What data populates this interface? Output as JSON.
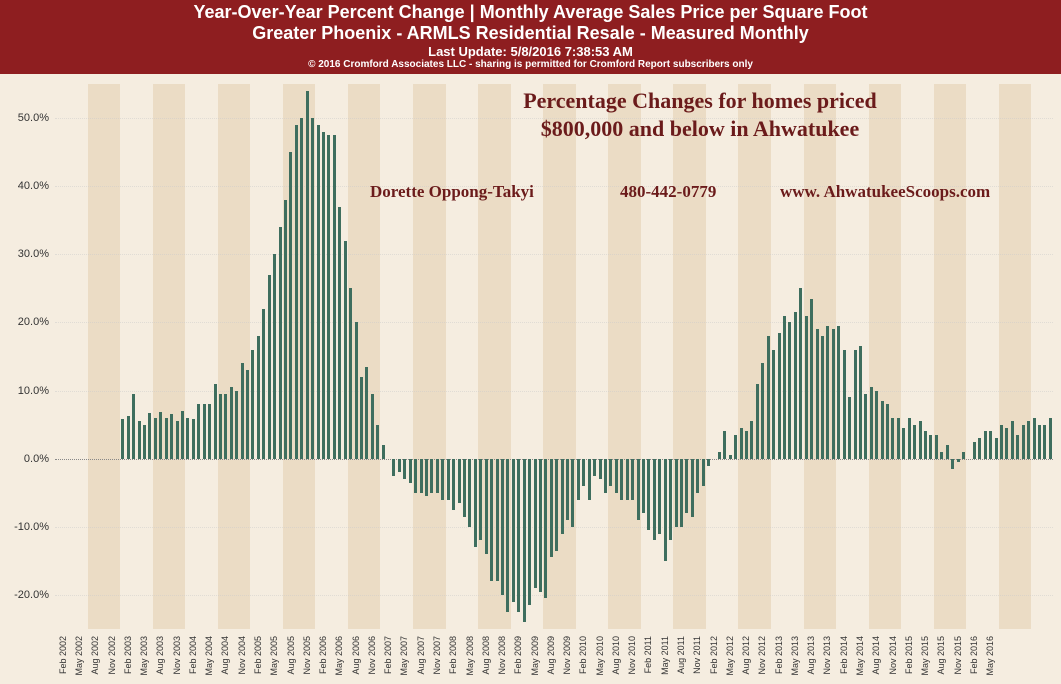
{
  "header": {
    "line1": "Year-Over-Year Percent Change | Monthly Average Sales Price per Square Foot",
    "line2": "Greater Phoenix - ARMLS Residential Resale - Measured Monthly",
    "line3": "Last Update: 5/8/2016 7:38:53 AM",
    "line4": "© 2016 Cromford Associates LLC - sharing is permitted for Cromford Report subscribers only",
    "bg_color": "#8e1e20",
    "text_color": "#ffffff"
  },
  "overlay": {
    "title_line1": "Percentage  Changes for homes priced",
    "title_line2": "$800,000 and below in Ahwatukee",
    "author": "Dorette Oppong-Takyi",
    "phone": "480-442-0779",
    "website": "www. AhwatukeeScoops.com",
    "text_color": "#6b1b1b",
    "font_family": "Georgia, serif"
  },
  "chart": {
    "type": "bar",
    "y_label_suffix": "%",
    "y_ticks": [
      -20.0,
      -10.0,
      0.0,
      10.0,
      20.0,
      30.0,
      40.0,
      50.0
    ],
    "y_min": -25.0,
    "y_max": 55.0,
    "bar_color": "#3e6e5e",
    "bg_color": "#f5ede0",
    "stripe_colors": [
      "#f5ede0",
      "#ebdcc5"
    ],
    "grid_color": "#cccccc",
    "zero_line_color": "#888888",
    "categories": [
      "Feb 2002",
      "May 2002",
      "Aug 2002",
      "Nov 2002",
      "Feb 2003",
      "May 2003",
      "Aug 2003",
      "Nov 2003",
      "Feb 2004",
      "May 2004",
      "Aug 2004",
      "Nov 2004",
      "Feb 2005",
      "May 2005",
      "Aug 2005",
      "Nov 2005",
      "Feb 2006",
      "May 2006",
      "Aug 2006",
      "Nov 2006",
      "Feb 2007",
      "May 2007",
      "Aug 2007",
      "Nov 2007",
      "Feb 2008",
      "May 2008",
      "Aug 2008",
      "Nov 2008",
      "Feb 2009",
      "May 2009",
      "Aug 2009",
      "Nov 2009",
      "Feb 2010",
      "May 2010",
      "Aug 2010",
      "Nov 2010",
      "Feb 2011",
      "May 2011",
      "Aug 2011",
      "Nov 2011",
      "Feb 2012",
      "May 2012",
      "Aug 2012",
      "Nov 2012",
      "Feb 2013",
      "May 2013",
      "Aug 2013",
      "Nov 2013",
      "Feb 2014",
      "May 2014",
      "Aug 2014",
      "Nov 2014",
      "Feb 2015",
      "May 2015",
      "Aug 2015",
      "Nov 2015",
      "Feb 2016",
      "May 2016"
    ],
    "values": [
      null,
      null,
      null,
      null,
      null,
      null,
      null,
      null,
      null,
      null,
      null,
      null,
      5.8,
      6.2,
      9.5,
      5.5,
      5.0,
      6.7,
      6.0,
      6.8,
      6.0,
      6.5,
      5.5,
      7.0,
      6.0,
      5.8,
      8.0,
      8.0,
      8.0,
      11.0,
      9.5,
      9.5,
      10.5,
      10.0,
      14.0,
      13.0,
      16.0,
      18.0,
      22.0,
      27.0,
      30.0,
      34.0,
      38.0,
      45.0,
      49.0,
      50.0,
      54.0,
      50.0,
      49.0,
      48.0,
      47.5,
      47.5,
      37.0,
      32.0,
      25.0,
      20.0,
      12.0,
      13.5,
      9.5,
      5.0,
      2.0,
      0.0,
      -2.5,
      -2.0,
      -3.0,
      -3.5,
      -5.0,
      -5.0,
      -5.5,
      -5.0,
      -5.0,
      -6.0,
      -6.0,
      -7.5,
      -6.5,
      -8.5,
      -10.0,
      -13.0,
      -12.0,
      -14.0,
      -18.0,
      -18.0,
      -20.0,
      -22.5,
      -21.0,
      -22.5,
      -24.0,
      -21.5,
      -19.0,
      -19.5,
      -20.5,
      -14.5,
      -13.5,
      -11.0,
      -9.0,
      -10.0,
      -6.0,
      -4.0,
      -6.0,
      -2.5,
      -3.0,
      -5.0,
      -4.0,
      -5.0,
      -6.0,
      -6.0,
      -6.0,
      -9.0,
      -8.0,
      -10.5,
      -12.0,
      -11.0,
      -15.0,
      -12.0,
      -10.0,
      -10.0,
      -8.0,
      -8.5,
      -5.0,
      -4.0,
      -1.0,
      0.0,
      1.0,
      4.0,
      0.5,
      3.5,
      4.5,
      4.0,
      5.5,
      11.0,
      14.0,
      18.0,
      16.0,
      18.5,
      21.0,
      20.0,
      21.5,
      25.0,
      21.0,
      23.5,
      19.0,
      18.0,
      19.5,
      19.0,
      19.5,
      16.0,
      9.0,
      16.0,
      16.5,
      9.5,
      10.5,
      10.0,
      8.5,
      8.0,
      6.0,
      6.0,
      4.5,
      6.0,
      5.0,
      5.5,
      4.0,
      3.5,
      3.5,
      1.0,
      2.0,
      -1.5,
      -0.5,
      1.0,
      0.0,
      2.5,
      3.0,
      4.0,
      4.0,
      3.0,
      5.0,
      4.5,
      5.5,
      3.5,
      5.0,
      5.5,
      6.0,
      5.0,
      5.0,
      6.0
    ],
    "months_per_label": 3,
    "stripe_width_months": 6,
    "start_month_index": 0
  }
}
